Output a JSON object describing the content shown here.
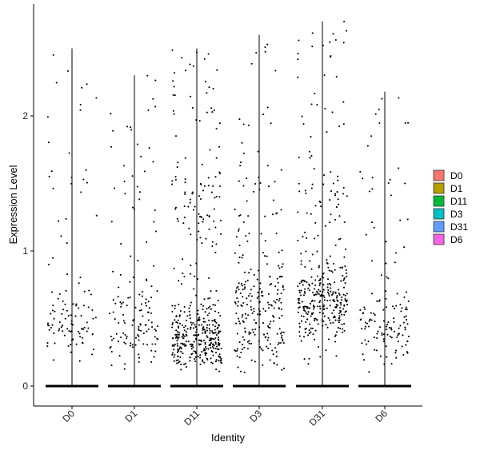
{
  "chart_data": {
    "type": "violin",
    "title": "",
    "xlabel": "Identity",
    "ylabel": "Expression Level",
    "ylim": [
      -0.15,
      2.8
    ],
    "yticks": [
      0,
      1,
      2
    ],
    "categories": [
      "D0",
      "D1",
      "D11",
      "D3",
      "D31",
      "D6"
    ],
    "colors": [
      "#F8766D",
      "#B79F00",
      "#00BA38",
      "#00BFC4",
      "#619CFF",
      "#F564E3"
    ],
    "series": [
      {
        "name": "D0",
        "max": 2.5,
        "points": 110,
        "bulk_low": 0.3,
        "bulk_high": 0.6
      },
      {
        "name": "D1",
        "max": 2.3,
        "points": 140,
        "bulk_low": 0.25,
        "bulk_high": 0.65
      },
      {
        "name": "D11",
        "max": 2.5,
        "points": 420,
        "bulk_low": 0.2,
        "bulk_high": 0.5
      },
      {
        "name": "D3",
        "max": 2.6,
        "points": 260,
        "bulk_low": 0.2,
        "bulk_high": 0.8
      },
      {
        "name": "D31",
        "max": 2.7,
        "points": 360,
        "bulk_low": 0.45,
        "bulk_high": 0.8
      },
      {
        "name": "D6",
        "max": 2.18,
        "points": 140,
        "bulk_low": 0.25,
        "bulk_high": 0.6
      }
    ],
    "legend": {
      "position": "right",
      "entries": [
        "D0",
        "D1",
        "D11",
        "D3",
        "D31",
        "D6"
      ]
    },
    "grid": false
  }
}
